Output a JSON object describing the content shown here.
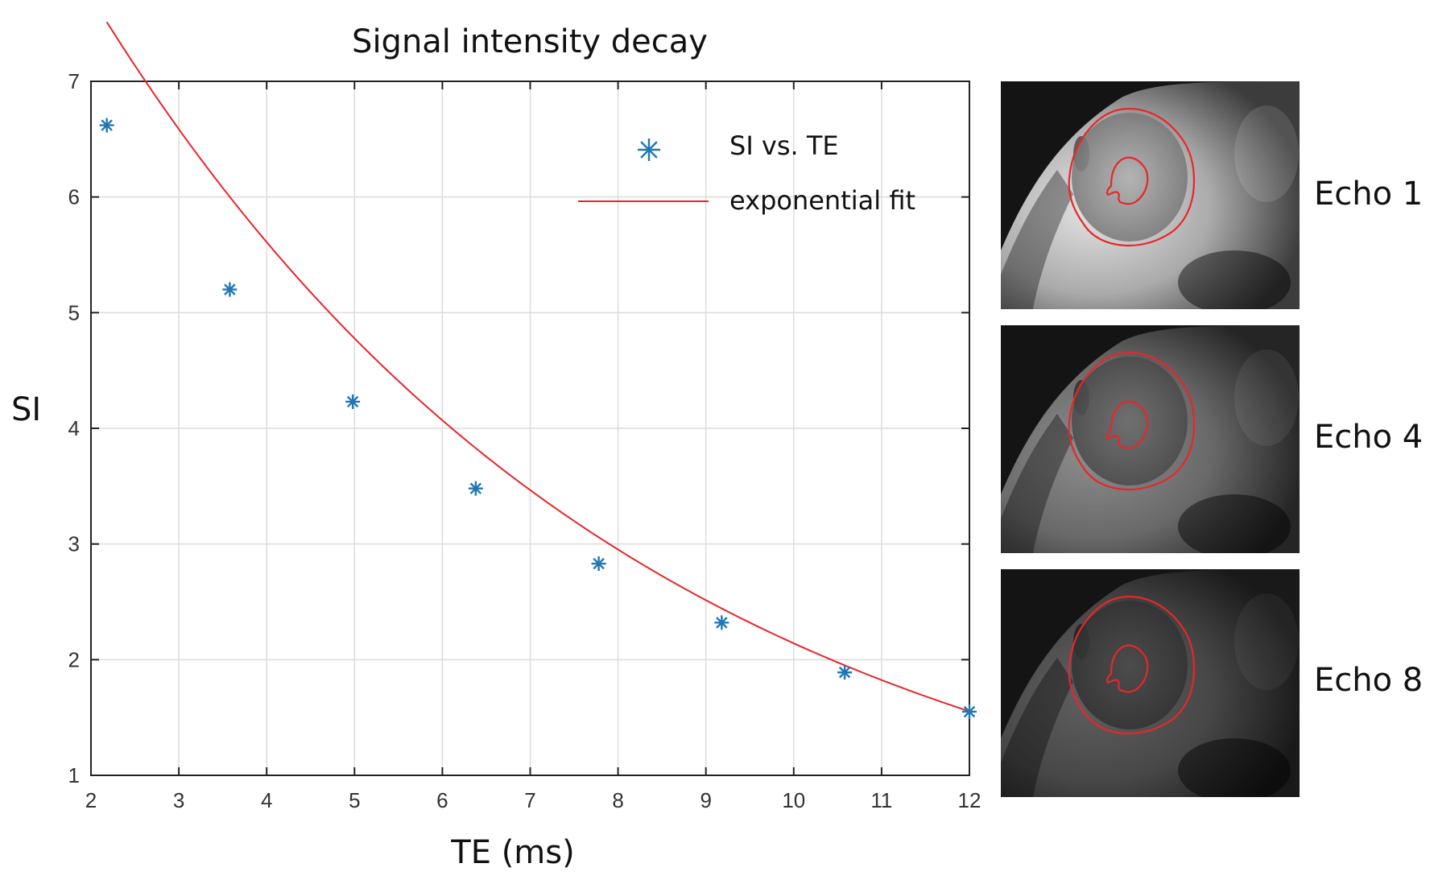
{
  "chart_data": {
    "type": "scatter",
    "title": "Signal intensity decay",
    "xlabel": "TE (ms)",
    "ylabel": "SI",
    "xlim": [
      2,
      12
    ],
    "ylim": [
      1,
      7
    ],
    "xticks": [
      2,
      3,
      4,
      5,
      6,
      7,
      8,
      9,
      10,
      11,
      12
    ],
    "yticks": [
      1,
      2,
      3,
      4,
      5,
      6,
      7
    ],
    "grid": true,
    "legend_position": "top-right",
    "series": [
      {
        "name": "SI vs. TE",
        "kind": "scatter",
        "marker": "asterisk",
        "color": "#1f77b4",
        "x": [
          2.18,
          3.58,
          4.98,
          6.38,
          7.78,
          9.18,
          10.58,
          12.0
        ],
        "y": [
          6.62,
          5.2,
          4.23,
          3.48,
          2.83,
          2.32,
          1.89,
          1.55
        ]
      },
      {
        "name": "exponential fit",
        "kind": "line",
        "color": "#e8262a",
        "model": {
          "a": 10.66,
          "k": 0.1605
        }
      }
    ]
  },
  "panels": [
    {
      "label": "Echo 1",
      "brightness": 1.0
    },
    {
      "label": "Echo 4",
      "brightness": 0.62
    },
    {
      "label": "Echo 8",
      "brightness": 0.42
    }
  ],
  "colors": {
    "contour": "#e8262a",
    "grid": "#dcdcdc",
    "axis": "#222222"
  }
}
